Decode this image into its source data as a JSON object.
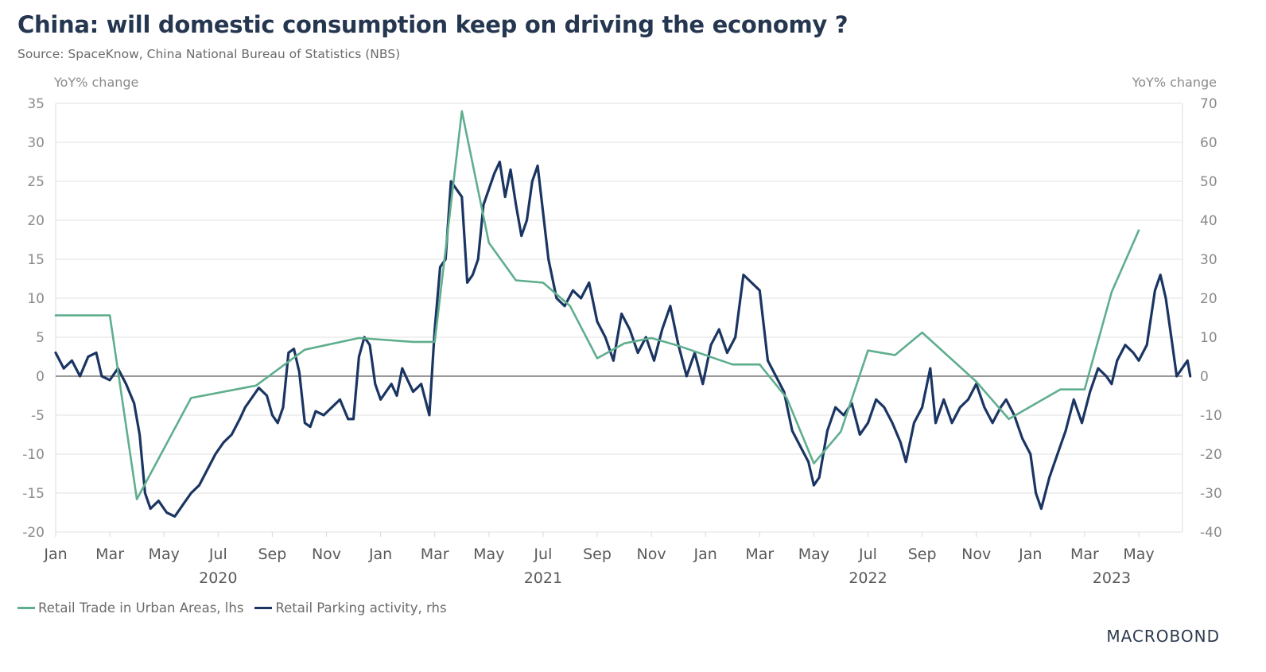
{
  "header": {
    "title": "China: will domestic consumption keep on driving the economy ?",
    "subtitle": "Source: SpaceKnow, China National Bureau of Statistics (NBS)"
  },
  "branding": {
    "logo": "MACROBOND"
  },
  "colors": {
    "green_series": "#5fae8e",
    "navy_series": "#1b3563",
    "zero_line": "#9a9a9a",
    "grid": "#e6e6e6"
  },
  "chart_data": {
    "type": "line",
    "title": "China: will domestic consumption keep on driving the economy ?",
    "subtitle": "Source: SpaceKnow, China National Bureau of Statistics (NBS)",
    "ylabel_left": "YoY% change",
    "ylabel_right": "YoY% change",
    "ylim_left": [
      -20,
      35
    ],
    "ylim_right": [
      -40,
      70
    ],
    "yticks_left": [
      "35",
      "30",
      "25",
      "20",
      "15",
      "10",
      "5",
      "0",
      "-5",
      "-10",
      "-15",
      "-20"
    ],
    "yticks_right": [
      "70",
      "60",
      "50",
      "40",
      "30",
      "20",
      "10",
      "0",
      "-10",
      "-20",
      "-30",
      "-40"
    ],
    "xaxis": {
      "start": "2020-01",
      "end": "2023-06",
      "month_ticks": [
        "Jan",
        "Mar",
        "May",
        "Jul",
        "Sep",
        "Nov",
        "Jan",
        "Mar",
        "May",
        "Jul",
        "Sep",
        "Nov",
        "Jan",
        "Mar",
        "May",
        "Jul",
        "Sep",
        "Nov",
        "Jan",
        "Mar",
        "May"
      ],
      "year_labels": [
        {
          "label": "2020",
          "month_index": 6
        },
        {
          "label": "2021",
          "month_index": 18
        },
        {
          "label": "2022",
          "month_index": 30
        },
        {
          "label": "2023",
          "month_index": 39
        }
      ]
    },
    "grid": true,
    "legend_position": "bottom-left",
    "series": [
      {
        "name": "Retail Trade in Urban Areas, lhs",
        "axis": "left",
        "color": "#5fae8e",
        "points": [
          [
            0,
            7.8
          ],
          [
            2,
            7.8
          ],
          [
            3,
            -15.8
          ],
          [
            5,
            -2.8
          ],
          [
            7.4,
            -1.2
          ],
          [
            9.2,
            3.4
          ],
          [
            11.2,
            4.9
          ],
          [
            13.2,
            4.4
          ],
          [
            14,
            4.4
          ],
          [
            15,
            34
          ],
          [
            16,
            17.1
          ],
          [
            17,
            12.3
          ],
          [
            18,
            12.0
          ],
          [
            19,
            9.0
          ],
          [
            20,
            2.3
          ],
          [
            21,
            4.2
          ],
          [
            22,
            4.9
          ],
          [
            23,
            3.9
          ],
          [
            25,
            1.5
          ],
          [
            26,
            1.5
          ],
          [
            27,
            -2.8
          ],
          [
            28,
            -11.2
          ],
          [
            29,
            -7.1
          ],
          [
            30,
            3.3
          ],
          [
            31,
            2.7
          ],
          [
            32,
            5.6
          ],
          [
            34,
            -0.7
          ],
          [
            35.2,
            -5.5
          ],
          [
            37.1,
            -1.7
          ],
          [
            38,
            -1.7
          ],
          [
            39,
            10.8
          ],
          [
            40,
            18.7
          ]
        ]
      },
      {
        "name": "Retail Parking activity, rhs",
        "axis": "right",
        "color": "#1b3563",
        "points": [
          [
            0,
            6
          ],
          [
            0.3,
            2
          ],
          [
            0.6,
            4
          ],
          [
            0.9,
            0
          ],
          [
            1.2,
            5
          ],
          [
            1.5,
            6
          ],
          [
            1.7,
            0
          ],
          [
            2,
            -1
          ],
          [
            2.3,
            2
          ],
          [
            2.6,
            -2
          ],
          [
            2.9,
            -7
          ],
          [
            3.1,
            -15
          ],
          [
            3.3,
            -30
          ],
          [
            3.5,
            -34
          ],
          [
            3.8,
            -32
          ],
          [
            4.1,
            -35
          ],
          [
            4.4,
            -36
          ],
          [
            4.7,
            -33
          ],
          [
            5,
            -30
          ],
          [
            5.3,
            -28
          ],
          [
            5.6,
            -24
          ],
          [
            5.9,
            -20
          ],
          [
            6.2,
            -17
          ],
          [
            6.5,
            -15
          ],
          [
            6.8,
            -11
          ],
          [
            7,
            -8
          ],
          [
            7.3,
            -5
          ],
          [
            7.5,
            -3
          ],
          [
            7.8,
            -5
          ],
          [
            8,
            -10
          ],
          [
            8.2,
            -12
          ],
          [
            8.4,
            -8
          ],
          [
            8.6,
            6
          ],
          [
            8.8,
            7
          ],
          [
            9,
            1
          ],
          [
            9.2,
            -12
          ],
          [
            9.4,
            -13
          ],
          [
            9.6,
            -9
          ],
          [
            9.9,
            -10
          ],
          [
            10.2,
            -8
          ],
          [
            10.5,
            -6
          ],
          [
            10.8,
            -11
          ],
          [
            11,
            -11
          ],
          [
            11.2,
            5
          ],
          [
            11.4,
            10
          ],
          [
            11.6,
            8
          ],
          [
            11.8,
            -2
          ],
          [
            12,
            -6
          ],
          [
            12.2,
            -4
          ],
          [
            12.4,
            -2
          ],
          [
            12.6,
            -5
          ],
          [
            12.8,
            2
          ],
          [
            13,
            -1
          ],
          [
            13.2,
            -4
          ],
          [
            13.5,
            -2
          ],
          [
            13.8,
            -10
          ],
          [
            14,
            12
          ],
          [
            14.2,
            28
          ],
          [
            14.4,
            30
          ],
          [
            14.6,
            50
          ],
          [
            14.8,
            48
          ],
          [
            15,
            46
          ],
          [
            15.2,
            24
          ],
          [
            15.4,
            26
          ],
          [
            15.6,
            30
          ],
          [
            15.8,
            44
          ],
          [
            16,
            48
          ],
          [
            16.2,
            52
          ],
          [
            16.4,
            55
          ],
          [
            16.6,
            46
          ],
          [
            16.8,
            53
          ],
          [
            17,
            44
          ],
          [
            17.2,
            36
          ],
          [
            17.4,
            40
          ],
          [
            17.6,
            50
          ],
          [
            17.8,
            54
          ],
          [
            18,
            42
          ],
          [
            18.2,
            30
          ],
          [
            18.5,
            20
          ],
          [
            18.8,
            18
          ],
          [
            19.1,
            22
          ],
          [
            19.4,
            20
          ],
          [
            19.7,
            24
          ],
          [
            20,
            14
          ],
          [
            20.3,
            10
          ],
          [
            20.6,
            4
          ],
          [
            20.9,
            16
          ],
          [
            21.2,
            12
          ],
          [
            21.5,
            6
          ],
          [
            21.8,
            10
          ],
          [
            22.1,
            4
          ],
          [
            22.4,
            12
          ],
          [
            22.7,
            18
          ],
          [
            23,
            8
          ],
          [
            23.3,
            0
          ],
          [
            23.6,
            6
          ],
          [
            23.9,
            -2
          ],
          [
            24.2,
            8
          ],
          [
            24.5,
            12
          ],
          [
            24.8,
            6
          ],
          [
            25.1,
            10
          ],
          [
            25.4,
            26
          ],
          [
            25.7,
            24
          ],
          [
            26,
            22
          ],
          [
            26.3,
            4
          ],
          [
            26.6,
            0
          ],
          [
            26.9,
            -4
          ],
          [
            27.2,
            -14
          ],
          [
            27.5,
            -18
          ],
          [
            27.8,
            -22
          ],
          [
            28,
            -28
          ],
          [
            28.2,
            -26
          ],
          [
            28.5,
            -14
          ],
          [
            28.8,
            -8
          ],
          [
            29.1,
            -10
          ],
          [
            29.4,
            -7
          ],
          [
            29.7,
            -15
          ],
          [
            30,
            -12
          ],
          [
            30.3,
            -6
          ],
          [
            30.6,
            -8
          ],
          [
            30.9,
            -12
          ],
          [
            31.2,
            -17
          ],
          [
            31.4,
            -22
          ],
          [
            31.7,
            -12
          ],
          [
            32,
            -8
          ],
          [
            32.3,
            2
          ],
          [
            32.5,
            -12
          ],
          [
            32.8,
            -6
          ],
          [
            33.1,
            -12
          ],
          [
            33.4,
            -8
          ],
          [
            33.7,
            -6
          ],
          [
            34,
            -2
          ],
          [
            34.3,
            -8
          ],
          [
            34.6,
            -12
          ],
          [
            34.9,
            -8
          ],
          [
            35.1,
            -6
          ],
          [
            35.4,
            -10
          ],
          [
            35.7,
            -16
          ],
          [
            36,
            -20
          ],
          [
            36.2,
            -30
          ],
          [
            36.4,
            -34
          ],
          [
            36.7,
            -26
          ],
          [
            37,
            -20
          ],
          [
            37.3,
            -14
          ],
          [
            37.6,
            -6
          ],
          [
            37.9,
            -12
          ],
          [
            38.2,
            -4
          ],
          [
            38.5,
            2
          ],
          [
            38.8,
            0
          ],
          [
            39,
            -2
          ],
          [
            39.2,
            4
          ],
          [
            39.5,
            8
          ],
          [
            39.8,
            6
          ],
          [
            40,
            4
          ],
          [
            40.3,
            8
          ],
          [
            40.6,
            22
          ],
          [
            40.8,
            26
          ],
          [
            41,
            20
          ],
          [
            41.2,
            10
          ],
          [
            41.4,
            0
          ],
          [
            41.6,
            2
          ],
          [
            41.8,
            4
          ],
          [
            41.9,
            0
          ]
        ]
      }
    ]
  },
  "legend": {
    "items": [
      {
        "label": "Retail Trade in Urban Areas, lhs",
        "color": "#5fae8e"
      },
      {
        "label": "Retail Parking activity, rhs",
        "color": "#1b3563"
      }
    ]
  }
}
